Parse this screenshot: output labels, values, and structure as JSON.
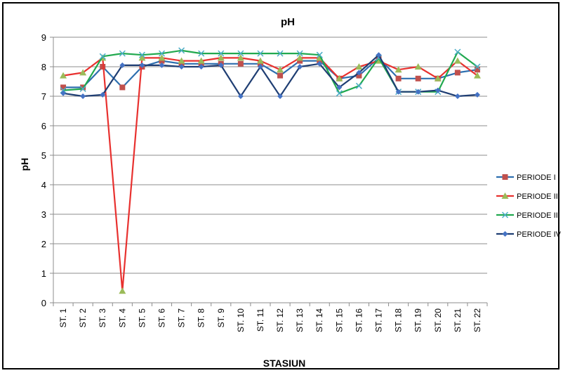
{
  "chart_data": {
    "type": "line",
    "title": "pH",
    "xlabel": "STASIUN",
    "ylabel": "pH",
    "ylim": [
      0,
      9
    ],
    "yticks": [
      "0",
      "1",
      "2",
      "3",
      "4",
      "5",
      "6",
      "7",
      "8",
      "9"
    ],
    "grid": "horizontal",
    "legend_position": "right",
    "categories": [
      "ST. 1",
      "ST. 2",
      "ST. 3",
      "ST. 4",
      "ST. 5",
      "ST. 6",
      "ST. 7",
      "ST. 8",
      "ST. 9",
      "ST. 10",
      "ST. 11",
      "ST. 12",
      "ST. 13",
      "ST. 14",
      "ST. 15",
      "ST. 16",
      "ST. 17",
      "ST. 18",
      "ST. 19",
      "ST. 20",
      "ST. 21",
      "ST. 22"
    ],
    "series": [
      {
        "name": "PERIODE I",
        "color": "#2e6faf",
        "marker": "square",
        "marker_color": "#c0504d",
        "values": [
          7.3,
          7.3,
          8.0,
          7.3,
          8.0,
          8.2,
          8.1,
          8.1,
          8.1,
          8.1,
          8.1,
          7.7,
          8.2,
          8.2,
          7.6,
          7.7,
          8.3,
          7.6,
          7.6,
          7.6,
          7.8,
          7.9
        ]
      },
      {
        "name": "PERIODE II",
        "color": "#e8312f",
        "marker": "triangle",
        "marker_color": "#9bbb59",
        "values": [
          7.7,
          7.8,
          8.3,
          0.4,
          8.3,
          8.3,
          8.2,
          8.2,
          8.3,
          8.3,
          8.2,
          7.9,
          8.3,
          8.3,
          7.6,
          8.0,
          8.2,
          7.9,
          8.0,
          7.6,
          8.2,
          7.7
        ]
      },
      {
        "name": "PERIODE III",
        "color": "#21a94f",
        "marker": "x",
        "marker_color": "#4bacc6",
        "values": [
          7.2,
          7.25,
          8.35,
          8.45,
          8.4,
          8.45,
          8.55,
          8.45,
          8.45,
          8.45,
          8.45,
          8.45,
          8.45,
          8.4,
          7.1,
          7.35,
          8.3,
          7.15,
          7.15,
          7.15,
          8.5,
          8.0
        ]
      },
      {
        "name": "PERIODE IV",
        "color": "#1f3e73",
        "marker": "diamond",
        "marker_color": "#4472c4",
        "values": [
          7.1,
          7.0,
          7.05,
          8.05,
          8.05,
          8.05,
          8.0,
          8.0,
          8.05,
          7.0,
          8.0,
          7.0,
          8.0,
          8.1,
          7.3,
          7.8,
          8.4,
          7.15,
          7.15,
          7.2,
          7.0,
          7.05
        ]
      }
    ]
  }
}
